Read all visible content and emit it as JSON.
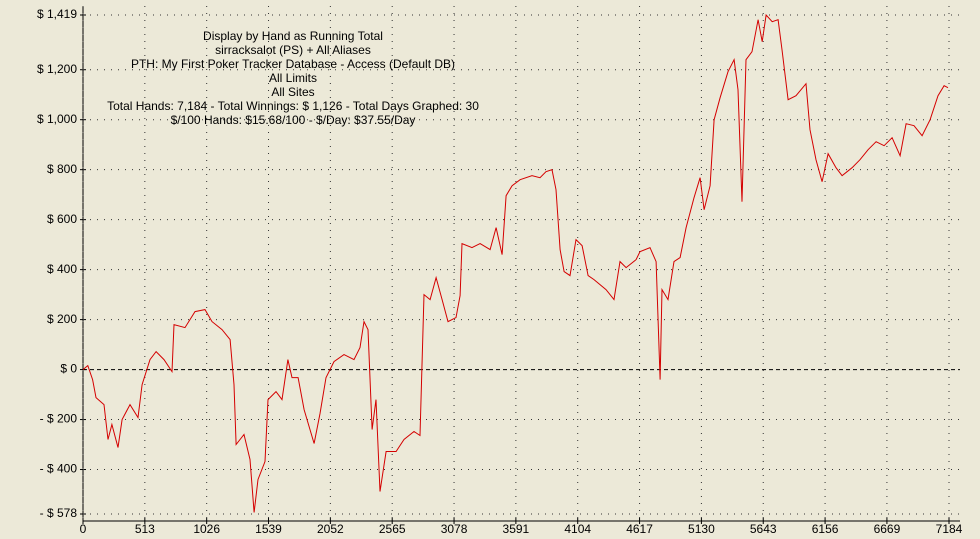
{
  "chart_data": {
    "type": "line",
    "title_lines": [
      "Display by Hand as Running Total",
      "sirracksalot (PS) + All Aliases",
      "PTH: My First Poker Tracker Database - Access (Default DB)",
      "All Limits",
      "All Sites",
      "Total Hands: 7,184 - Total Winnings: $ 1,126 - Total Days Graphed: 30",
      "$/100 Hands: $15.68/100 - $/Day: $37.55/Day"
    ],
    "x": [
      0,
      40,
      80,
      108,
      174,
      207,
      240,
      290,
      324,
      390,
      456,
      490,
      556,
      606,
      672,
      738,
      755,
      846,
      929,
      1012,
      1070,
      1153,
      1220,
      1253,
      1270,
      1336,
      1385,
      1419,
      1452,
      1510,
      1535,
      1601,
      1651,
      1700,
      1734,
      1784,
      1834,
      1917,
      1966,
      2016,
      2082,
      2165,
      2248,
      2298,
      2331,
      2364,
      2398,
      2431,
      2464,
      2514,
      2597,
      2663,
      2746,
      2796,
      2829,
      2879,
      2929,
      2979,
      3028,
      3094,
      3128,
      3144,
      3227,
      3294,
      3377,
      3427,
      3477,
      3510,
      3560,
      3626,
      3725,
      3791,
      3841,
      3891,
      3924,
      3958,
      3991,
      4040,
      4090,
      4140,
      4190,
      4239,
      4339,
      4405,
      4455,
      4505,
      4588,
      4621,
      4704,
      4754,
      4787,
      4803,
      4853,
      4903,
      4953,
      5003,
      5069,
      5119,
      5152,
      5202,
      5235,
      5285,
      5351,
      5401,
      5434,
      5467,
      5500,
      5550,
      5600,
      5634,
      5667,
      5717,
      5766,
      5799,
      5849,
      5915,
      5998,
      6031,
      6081,
      6131,
      6181,
      6247,
      6297,
      6380,
      6446,
      6513,
      6579,
      6646,
      6712,
      6778,
      6828,
      6894,
      6961,
      7027,
      7093,
      7143,
      7176
    ],
    "series": [
      {
        "name": "Running Total",
        "color": "#d40000",
        "values": [
          0,
          16,
          -40,
          -112,
          -140,
          -280,
          -220,
          -312,
          -200,
          -140,
          -192,
          -60,
          40,
          72,
          40,
          -8,
          180,
          168,
          232,
          240,
          192,
          160,
          120,
          -60,
          -300,
          -260,
          -360,
          -572,
          -440,
          -368,
          -120,
          -88,
          -120,
          40,
          -32,
          -32,
          -160,
          -296,
          -176,
          -32,
          32,
          60,
          40,
          88,
          192,
          160,
          -240,
          -120,
          -488,
          -328,
          -328,
          -280,
          -248,
          -264,
          300,
          280,
          368,
          280,
          192,
          208,
          296,
          504,
          488,
          504,
          480,
          568,
          460,
          696,
          736,
          760,
          776,
          768,
          792,
          800,
          720,
          480,
          392,
          376,
          520,
          496,
          376,
          360,
          320,
          280,
          432,
          408,
          440,
          472,
          488,
          432,
          -40,
          320,
          280,
          432,
          448,
          568,
          688,
          768,
          640,
          736,
          1000,
          1088,
          1192,
          1240,
          1120,
          672,
          1240,
          1272,
          1400,
          1312,
          1419,
          1392,
          1400,
          1280,
          1080,
          1096,
          1144,
          960,
          840,
          752,
          864,
          808,
          776,
          808,
          840,
          880,
          912,
          896,
          928,
          856,
          984,
          976,
          936,
          1000,
          1096,
          1136,
          1128
        ]
      }
    ],
    "xlim": [
      0,
      7184
    ],
    "xticks": [
      0,
      513,
      1026,
      1539,
      2052,
      2565,
      3078,
      3591,
      4104,
      4617,
      5130,
      5643,
      6156,
      6669,
      7184
    ],
    "ylim": [
      -578,
      1419
    ],
    "yticks": [
      {
        "value": 1419,
        "label": "$ 1,419"
      },
      {
        "value": 1200,
        "label": "$ 1,200"
      },
      {
        "value": 1000,
        "label": "$ 1,000"
      },
      {
        "value": 800,
        "label": "$ 800"
      },
      {
        "value": 600,
        "label": "$ 600"
      },
      {
        "value": 400,
        "label": "$ 400"
      },
      {
        "value": 200,
        "label": "$ 200"
      },
      {
        "value": 0,
        "label": "$ 0"
      },
      {
        "value": -200,
        "label": "- $ 200"
      },
      {
        "value": -400,
        "label": "- $ 400"
      },
      {
        "value": -578,
        "label": "- $ 578"
      }
    ],
    "grid": true
  }
}
